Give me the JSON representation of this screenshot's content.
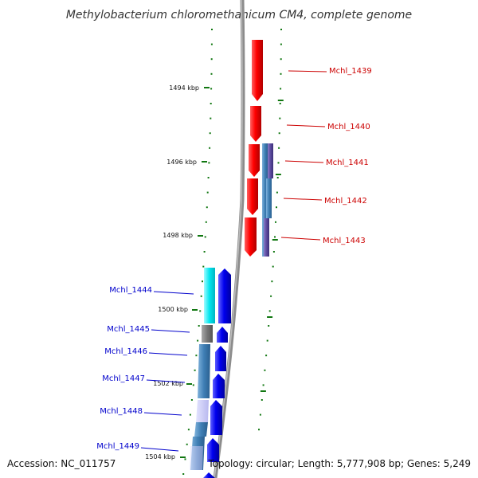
{
  "title": "Methylobacterium chloromethanicum CM4, complete genome",
  "footer": {
    "accession": "Accession: NC_011757",
    "summary": "Topology: circular; Length: 5,777,908 bp; Genes: 5,249"
  },
  "scale_labels": [
    "1494 kbp",
    "1496 kbp",
    "1498 kbp",
    "1500 kbp",
    "1502 kbp",
    "1504 kbp"
  ],
  "genes": [
    {
      "name": "Mchl_1439",
      "strand": "forward",
      "color": "#cc0000"
    },
    {
      "name": "Mchl_1440",
      "strand": "forward",
      "color": "#cc0000"
    },
    {
      "name": "Mchl_1441",
      "strand": "forward",
      "color": "#cc0000"
    },
    {
      "name": "Mchl_1442",
      "strand": "forward",
      "color": "#cc0000"
    },
    {
      "name": "Mchl_1443",
      "strand": "forward",
      "color": "#cc0000"
    },
    {
      "name": "Mchl_1444",
      "strand": "reverse",
      "color": "#0000cc"
    },
    {
      "name": "Mchl_1445",
      "strand": "reverse",
      "color": "#0000cc"
    },
    {
      "name": "Mchl_1446",
      "strand": "reverse",
      "color": "#0000cc"
    },
    {
      "name": "Mchl_1447",
      "strand": "reverse",
      "color": "#0000cc"
    },
    {
      "name": "Mchl_1448",
      "strand": "reverse",
      "color": "#0000cc"
    },
    {
      "name": "Mchl_1449",
      "strand": "reverse",
      "color": "#0000cc"
    }
  ],
  "colors": {
    "forward_gene": "#ff0000",
    "reverse_gene": "#0000ee",
    "tick": "#117711",
    "backbone": "#888888",
    "cds_track": "#3f7fb5",
    "cyan_feature": "#00e5ee",
    "purple_feature": "#5b4a9e"
  }
}
